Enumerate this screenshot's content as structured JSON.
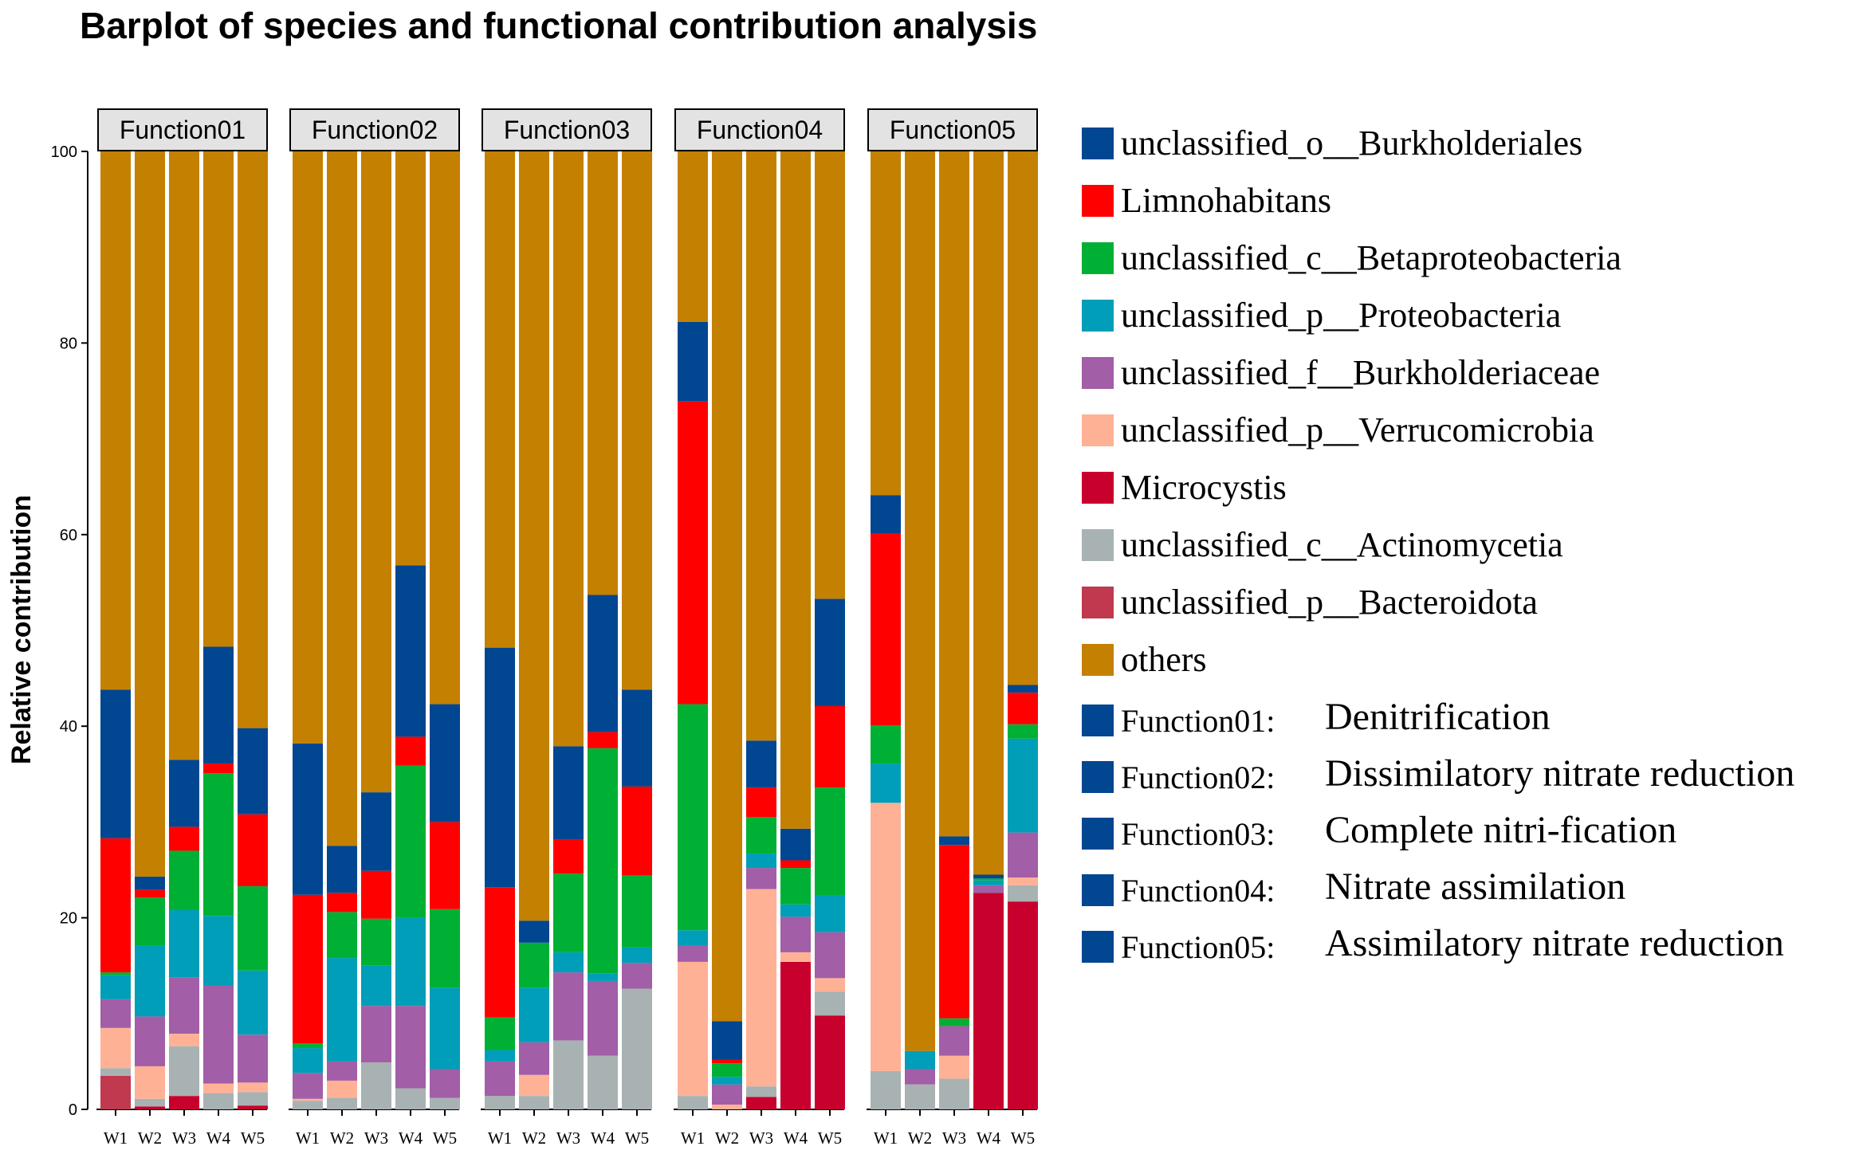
{
  "chart_data": {
    "type": "bar",
    "stacked": true,
    "title": "Barplot of species and functional contribution analysis",
    "ylabel": "Relative contribution",
    "xlabel": "",
    "ylim": [
      0,
      100
    ],
    "yticks": [
      0,
      20,
      40,
      60,
      80,
      100
    ],
    "categories": [
      "W1",
      "W2",
      "W3",
      "W4",
      "W5"
    ],
    "species": [
      {
        "name": "unclassified_p__Bacteroidota",
        "color": "#c0394e"
      },
      {
        "name": "Microcystis",
        "color": "#c8002d"
      },
      {
        "name": "unclassified_c__Actinomycetia",
        "color": "#a8b2b2"
      },
      {
        "name": "unclassified_p__Verrucomicrobia",
        "color": "#ffb196"
      },
      {
        "name": "unclassified_f__Burkholderiaceae",
        "color": "#a25ea6"
      },
      {
        "name": "unclassified_p__Proteobacteria",
        "color": "#009eb8"
      },
      {
        "name": "unclassified_c__Betaproteobacteria",
        "color": "#00b034"
      },
      {
        "name": "Limnohabitans",
        "color": "#ff0000"
      },
      {
        "name": "unclassified_o__Burkholderiales",
        "color": "#004691"
      },
      {
        "name": "others",
        "color": "#c48000"
      }
    ],
    "legend_order": [
      "unclassified_o__Burkholderiales",
      "Limnohabitans",
      "unclassified_c__Betaproteobacteria",
      "unclassified_p__Proteobacteria",
      "unclassified_f__Burkholderiaceae",
      "unclassified_p__Verrucomicrobia",
      "Microcystis",
      "unclassified_c__Actinomycetia",
      "unclassified_p__Bacteroidota",
      "others"
    ],
    "legend_placement": "right",
    "panels": [
      {
        "name": "Function01",
        "values": [
          [
            3.5,
            0,
            0.8,
            4.2,
            3.0,
            2.5,
            0.3,
            14.0,
            15.5,
            56.2
          ],
          [
            0,
            0.3,
            0.8,
            3.4,
            5.2,
            7.4,
            5.0,
            0.8,
            1.4,
            75.7
          ],
          [
            0,
            1.4,
            5.2,
            1.3,
            5.9,
            7.0,
            6.2,
            2.5,
            7.0,
            63.5
          ],
          [
            0,
            0,
            1.7,
            1.0,
            10.2,
            7.3,
            14.9,
            1.0,
            12.2,
            51.7
          ],
          [
            0,
            0.4,
            1.4,
            1.0,
            5.0,
            6.7,
            8.8,
            7.5,
            9.0,
            60.2
          ]
        ]
      },
      {
        "name": "Function02",
        "values": [
          [
            0,
            0,
            0.9,
            0.2,
            2.7,
            2.6,
            0.5,
            15.5,
            15.8,
            61.8
          ],
          [
            0,
            0,
            1.2,
            1.8,
            2.0,
            10.8,
            4.8,
            2.0,
            4.9,
            72.5
          ],
          [
            0,
            0,
            4.9,
            0,
            5.9,
            4.2,
            4.9,
            5.0,
            8.2,
            66.9
          ],
          [
            0,
            0,
            2.2,
            0,
            8.6,
            9.2,
            15.9,
            3.0,
            17.9,
            43.2
          ],
          [
            0,
            0,
            1.2,
            0,
            3.0,
            8.5,
            8.2,
            9.1,
            12.3,
            57.7
          ]
        ]
      },
      {
        "name": "Function03",
        "values": [
          [
            0,
            0,
            1.4,
            0,
            3.6,
            1.2,
            3.4,
            13.6,
            25.0,
            51.8
          ],
          [
            0,
            0,
            1.4,
            2.2,
            3.4,
            5.7,
            4.7,
            0,
            2.3,
            80.3
          ],
          [
            0,
            0,
            7.2,
            0,
            7.1,
            2.1,
            8.2,
            3.6,
            9.7,
            62.1
          ],
          [
            0,
            0,
            5.6,
            0,
            7.8,
            0.8,
            23.5,
            1.7,
            14.3,
            46.3
          ],
          [
            0,
            0,
            12.6,
            0,
            2.7,
            1.6,
            7.5,
            9.3,
            10.1,
            56.2
          ]
        ]
      },
      {
        "name": "Function04",
        "values": [
          [
            0,
            0,
            1.4,
            14.0,
            1.7,
            1.6,
            23.6,
            31.6,
            8.3,
            17.8
          ],
          [
            0,
            0,
            0,
            0.5,
            2.1,
            0.8,
            1.4,
            0.4,
            4.0,
            90.8
          ],
          [
            0,
            1.3,
            1.1,
            20.6,
            2.2,
            1.5,
            3.8,
            3.1,
            4.9,
            61.5
          ],
          [
            0,
            15.4,
            0,
            1.0,
            3.7,
            1.3,
            3.8,
            0.8,
            3.3,
            70.7
          ],
          [
            0,
            9.8,
            2.5,
            1.4,
            4.8,
            3.8,
            11.3,
            8.5,
            11.2,
            46.7
          ]
        ]
      },
      {
        "name": "Function05",
        "values": [
          [
            0,
            0,
            4.0,
            28.0,
            0,
            4.1,
            4.0,
            20.0,
            4.0,
            35.9
          ],
          [
            0,
            0,
            2.6,
            0,
            1.6,
            1.9,
            0,
            0,
            0,
            93.9
          ],
          [
            0,
            0,
            3.2,
            2.4,
            3.1,
            0,
            0.8,
            18.1,
            0.9,
            71.5
          ],
          [
            0,
            22.6,
            0,
            0,
            0.8,
            0.5,
            0.2,
            0,
            0.4,
            75.5
          ],
          [
            0,
            21.7,
            1.7,
            0.8,
            4.7,
            9.8,
            1.5,
            3.3,
            0.8,
            55.7
          ]
        ]
      }
    ],
    "function_legend": [
      {
        "key": "Function01:",
        "description": "Denitrification"
      },
      {
        "key": "Function02:",
        "description": "Dissimilatory nitrate reduction"
      },
      {
        "key": "Function03:",
        "description": "Complete nitri-fication"
      },
      {
        "key": "Function04:",
        "description": "Nitrate assimilation"
      },
      {
        "key": "Function05:",
        "description": "Assimilatory nitrate reduction"
      }
    ],
    "function_legend_color": "#004691"
  }
}
